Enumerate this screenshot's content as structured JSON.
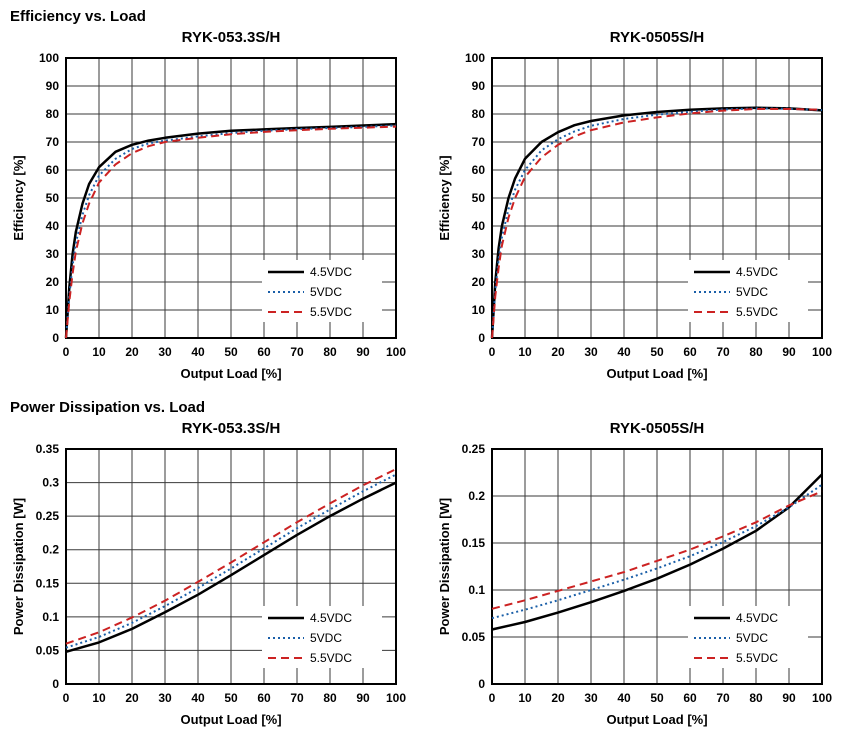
{
  "sections": [
    {
      "heading": "Efficiency vs. Load"
    },
    {
      "heading": "Power Dissipation vs. Load"
    }
  ],
  "colors": {
    "line_45vdc": "#000000",
    "line_5vdc": "#1a5fa8",
    "line_55vdc": "#cc2222",
    "grid": "#3a3a3a",
    "border": "#000000"
  },
  "chart_data": [
    {
      "type": "line",
      "title": "RYK-053.3S/H",
      "xlabel": "Output Load [%]",
      "ylabel": "Efficiency [%]",
      "xlim": [
        0,
        100
      ],
      "ylim": [
        0,
        100
      ],
      "grid": true,
      "legend_position": "lower right",
      "xticks": [
        0,
        10,
        20,
        30,
        40,
        50,
        60,
        70,
        80,
        90,
        100
      ],
      "xtick_labels": [
        "0",
        "10",
        "20",
        "30",
        "40",
        "50",
        "60",
        "70",
        "80",
        "90",
        "100"
      ],
      "yticks": [
        0,
        10,
        20,
        30,
        40,
        50,
        60,
        70,
        80,
        90,
        100
      ],
      "ytick_labels": [
        "0",
        "10",
        "20",
        "30",
        "40",
        "50",
        "60",
        "70",
        "80",
        "90",
        "100"
      ],
      "series": [
        {
          "name": "4.5VDC",
          "color": "#000000",
          "dash": "solid",
          "width": 2.5,
          "x": [
            0,
            1,
            2,
            3,
            5,
            7,
            10,
            15,
            20,
            25,
            30,
            40,
            50,
            60,
            70,
            80,
            90,
            100
          ],
          "y": [
            0,
            18,
            30,
            38,
            48,
            55,
            61,
            66.5,
            69,
            70.5,
            71.5,
            73,
            74,
            74.5,
            75,
            75.4,
            75.9,
            76.4
          ]
        },
        {
          "name": "5VDC",
          "color": "#1a5fa8",
          "dash": "dotted",
          "width": 2,
          "x": [
            0,
            1,
            2,
            3,
            5,
            7,
            10,
            15,
            20,
            25,
            30,
            40,
            50,
            60,
            70,
            80,
            90,
            100
          ],
          "y": [
            0,
            15,
            26,
            34,
            44,
            51,
            58,
            64,
            67.5,
            69.5,
            70.5,
            72,
            73.2,
            74,
            74.6,
            75,
            75.4,
            75.9
          ]
        },
        {
          "name": "5.5VDC",
          "color": "#cc2222",
          "dash": "dashed",
          "width": 2,
          "x": [
            0,
            1,
            2,
            3,
            5,
            7,
            10,
            15,
            20,
            25,
            30,
            40,
            50,
            60,
            70,
            80,
            90,
            100
          ],
          "y": [
            0,
            13,
            23,
            31,
            41,
            48,
            55.5,
            62,
            66,
            68.5,
            70,
            71.5,
            72.8,
            73.6,
            74.2,
            74.7,
            75.1,
            75.5
          ]
        }
      ]
    },
    {
      "type": "line",
      "title": "RYK-0505S/H",
      "xlabel": "Output Load [%]",
      "ylabel": "Efficiency [%]",
      "xlim": [
        0,
        100
      ],
      "ylim": [
        0,
        100
      ],
      "grid": true,
      "legend_position": "lower right",
      "xticks": [
        0,
        10,
        20,
        30,
        40,
        50,
        60,
        70,
        80,
        90,
        100
      ],
      "xtick_labels": [
        "0",
        "10",
        "20",
        "30",
        "40",
        "50",
        "60",
        "70",
        "80",
        "90",
        "100"
      ],
      "yticks": [
        0,
        10,
        20,
        30,
        40,
        50,
        60,
        70,
        80,
        90,
        100
      ],
      "ytick_labels": [
        "0",
        "10",
        "20",
        "30",
        "40",
        "50",
        "60",
        "70",
        "80",
        "90",
        "100"
      ],
      "series": [
        {
          "name": "4.5VDC",
          "color": "#000000",
          "dash": "solid",
          "width": 2.5,
          "x": [
            0,
            1,
            2,
            3,
            5,
            7,
            10,
            15,
            20,
            25,
            30,
            40,
            50,
            60,
            70,
            80,
            90,
            100
          ],
          "y": [
            0,
            20,
            32,
            40,
            50,
            57,
            64,
            70,
            73.5,
            76,
            77.5,
            79.5,
            80.7,
            81.5,
            82,
            82.2,
            82,
            81.3
          ]
        },
        {
          "name": "5VDC",
          "color": "#1a5fa8",
          "dash": "dotted",
          "width": 2,
          "x": [
            0,
            1,
            2,
            3,
            5,
            7,
            10,
            15,
            20,
            25,
            30,
            40,
            50,
            60,
            70,
            80,
            90,
            100
          ],
          "y": [
            0,
            17,
            28,
            36,
            46,
            53,
            60,
            67,
            71,
            73.8,
            75.8,
            78.2,
            79.8,
            80.8,
            81.6,
            82,
            81.9,
            81.4
          ]
        },
        {
          "name": "5.5VDC",
          "color": "#cc2222",
          "dash": "dashed",
          "width": 2,
          "x": [
            0,
            1,
            2,
            3,
            5,
            7,
            10,
            15,
            20,
            25,
            30,
            40,
            50,
            60,
            70,
            80,
            90,
            100
          ],
          "y": [
            0,
            15,
            25,
            33,
            43,
            50,
            57.5,
            64.5,
            69,
            72,
            74.2,
            77,
            78.8,
            80.2,
            81.2,
            81.8,
            81.8,
            81.5
          ]
        }
      ]
    },
    {
      "type": "line",
      "title": "RYK-053.3S/H",
      "xlabel": "Output Load [%]",
      "ylabel": "Power Dissipation [W]",
      "xlim": [
        0,
        100
      ],
      "ylim": [
        0,
        0.35
      ],
      "grid": true,
      "legend_position": "lower right",
      "xticks": [
        0,
        10,
        20,
        30,
        40,
        50,
        60,
        70,
        80,
        90,
        100
      ],
      "xtick_labels": [
        "0",
        "10",
        "20",
        "30",
        "40",
        "50",
        "60",
        "70",
        "80",
        "90",
        "100"
      ],
      "yticks": [
        0,
        0.05,
        0.1,
        0.15,
        0.2,
        0.25,
        0.3,
        0.35
      ],
      "ytick_labels": [
        "0",
        "0.05",
        "0.1",
        "0.15",
        "0.2",
        "0.25",
        "0.3",
        "0.35"
      ],
      "series": [
        {
          "name": "4.5VDC",
          "color": "#000000",
          "dash": "solid",
          "width": 2.5,
          "x": [
            0,
            10,
            20,
            30,
            40,
            50,
            60,
            70,
            80,
            90,
            100
          ],
          "y": [
            0.048,
            0.062,
            0.082,
            0.107,
            0.133,
            0.162,
            0.192,
            0.222,
            0.25,
            0.276,
            0.3
          ]
        },
        {
          "name": "5VDC",
          "color": "#1a5fa8",
          "dash": "dotted",
          "width": 2,
          "x": [
            0,
            10,
            20,
            30,
            40,
            50,
            60,
            70,
            80,
            90,
            100
          ],
          "y": [
            0.054,
            0.07,
            0.091,
            0.116,
            0.143,
            0.172,
            0.202,
            0.232,
            0.26,
            0.287,
            0.312
          ]
        },
        {
          "name": "5.5VDC",
          "color": "#cc2222",
          "dash": "dashed",
          "width": 2,
          "x": [
            0,
            10,
            20,
            30,
            40,
            50,
            60,
            70,
            80,
            90,
            100
          ],
          "y": [
            0.06,
            0.077,
            0.099,
            0.124,
            0.152,
            0.181,
            0.211,
            0.241,
            0.269,
            0.296,
            0.32
          ]
        }
      ]
    },
    {
      "type": "line",
      "title": "RYK-0505S/H",
      "xlabel": "Output Load [%]",
      "ylabel": "Power Dissipation [W]",
      "xlim": [
        0,
        100
      ],
      "ylim": [
        0,
        0.25
      ],
      "grid": true,
      "legend_position": "lower right",
      "xticks": [
        0,
        10,
        20,
        30,
        40,
        50,
        60,
        70,
        80,
        90,
        100
      ],
      "xtick_labels": [
        "0",
        "10",
        "20",
        "30",
        "40",
        "50",
        "60",
        "70",
        "80",
        "90",
        "100"
      ],
      "yticks": [
        0,
        0.05,
        0.1,
        0.15,
        0.2,
        0.25
      ],
      "ytick_labels": [
        "0",
        "0.05",
        "0.1",
        "0.15",
        "0.2",
        "0.25"
      ],
      "series": [
        {
          "name": "4.5VDC",
          "color": "#000000",
          "dash": "solid",
          "width": 2.5,
          "x": [
            0,
            10,
            20,
            30,
            40,
            50,
            60,
            70,
            80,
            90,
            100
          ],
          "y": [
            0.058,
            0.066,
            0.076,
            0.087,
            0.099,
            0.112,
            0.127,
            0.144,
            0.163,
            0.188,
            0.223
          ]
        },
        {
          "name": "5VDC",
          "color": "#1a5fa8",
          "dash": "dotted",
          "width": 2,
          "x": [
            0,
            10,
            20,
            30,
            40,
            50,
            60,
            70,
            80,
            90,
            100
          ],
          "y": [
            0.07,
            0.079,
            0.089,
            0.1,
            0.111,
            0.123,
            0.136,
            0.151,
            0.168,
            0.188,
            0.212
          ]
        },
        {
          "name": "5.5VDC",
          "color": "#cc2222",
          "dash": "dashed",
          "width": 2,
          "x": [
            0,
            10,
            20,
            30,
            40,
            50,
            60,
            70,
            80,
            90,
            100
          ],
          "y": [
            0.08,
            0.089,
            0.099,
            0.109,
            0.119,
            0.131,
            0.143,
            0.157,
            0.172,
            0.19,
            0.205
          ]
        }
      ]
    }
  ]
}
